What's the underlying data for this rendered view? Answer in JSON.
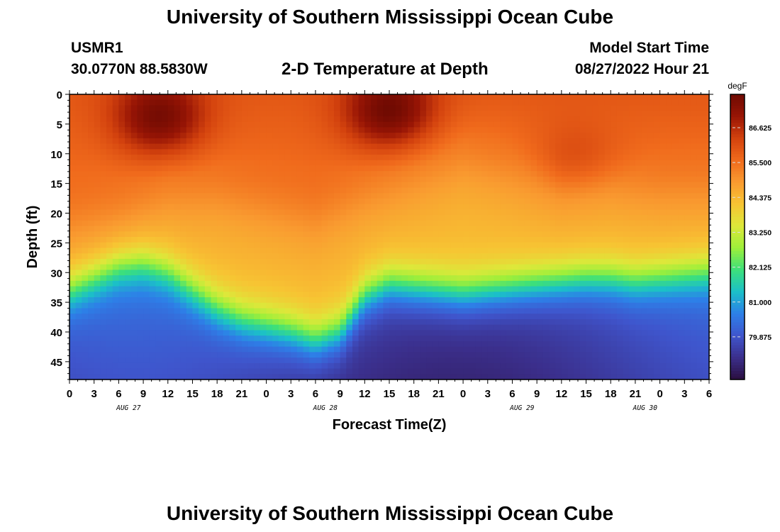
{
  "header": {
    "title": "University of Southern Mississippi Ocean Cube",
    "station_id": "USMR1",
    "coordinates": "30.0770N  88.5830W",
    "subtitle": "2-D Temperature at Depth",
    "model_start_label": "Model Start Time",
    "model_start_value": "08/27/2022 Hour 21"
  },
  "footer": {
    "title": "University of Southern Mississippi Ocean Cube"
  },
  "chart_data": {
    "type": "heatmap",
    "title": "2-D Temperature at Depth",
    "xlabel": "Forecast Time(Z)",
    "ylabel": "Depth (ft)",
    "x_ticks": [
      "0",
      "3",
      "6",
      "9",
      "12",
      "15",
      "18",
      "21",
      "0",
      "3",
      "6",
      "9",
      "12",
      "15",
      "18",
      "21",
      "0",
      "3",
      "6",
      "9",
      "12",
      "15",
      "18",
      "21",
      "0",
      "3",
      "6"
    ],
    "date_labels": [
      {
        "label": "AUG 27",
        "hour": 7.2
      },
      {
        "label": "AUG 28",
        "hour": 31.2
      },
      {
        "label": "AUG 29",
        "hour": 55.2
      },
      {
        "label": "AUG 30",
        "hour": 70.2
      }
    ],
    "x_range_hours": [
      0,
      78
    ],
    "y_ticks": [
      0,
      5,
      10,
      15,
      20,
      25,
      30,
      35,
      40,
      45
    ],
    "ylim": [
      0,
      48
    ],
    "y_inverted": true,
    "colorbar": {
      "unit": "degF",
      "ticks": [
        79.875,
        81.0,
        82.125,
        83.25,
        84.375,
        85.5,
        86.625
      ],
      "tick_labels": [
        "79.875",
        "81.000",
        "82.125",
        "83.250",
        "84.375",
        "85.500",
        "86.625"
      ],
      "range": [
        78.5,
        87.7
      ],
      "colors": [
        "#2b0f40",
        "#3b2f8c",
        "#3f55cc",
        "#2d80e8",
        "#1bc0c8",
        "#3de07a",
        "#9eef3a",
        "#dde83a",
        "#f7c433",
        "#f99a30",
        "#f06a1c",
        "#d3420e",
        "#981505",
        "#6e0a02"
      ]
    },
    "thermocline_depth_ft": [
      {
        "hour": 0,
        "depth": 33
      },
      {
        "hour": 3,
        "depth": 31
      },
      {
        "hour": 6,
        "depth": 29
      },
      {
        "hour": 9,
        "depth": 28.5
      },
      {
        "hour": 12,
        "depth": 30
      },
      {
        "hour": 15,
        "depth": 33
      },
      {
        "hour": 18,
        "depth": 36
      },
      {
        "hour": 21,
        "depth": 38
      },
      {
        "hour": 24,
        "depth": 39
      },
      {
        "hour": 27,
        "depth": 40
      },
      {
        "hour": 30,
        "depth": 41.5
      },
      {
        "hour": 33,
        "depth": 40
      },
      {
        "hour": 36,
        "depth": 34
      },
      {
        "hour": 39,
        "depth": 32
      },
      {
        "hour": 42,
        "depth": 32.5
      },
      {
        "hour": 45,
        "depth": 33
      },
      {
        "hour": 48,
        "depth": 33.5
      },
      {
        "hour": 51,
        "depth": 33
      },
      {
        "hour": 54,
        "depth": 32.5
      },
      {
        "hour": 57,
        "depth": 32
      },
      {
        "hour": 60,
        "depth": 31.5
      },
      {
        "hour": 63,
        "depth": 31
      },
      {
        "hour": 66,
        "depth": 31
      },
      {
        "hour": 69,
        "depth": 31.5
      },
      {
        "hour": 72,
        "depth": 31
      },
      {
        "hour": 75,
        "depth": 30.5
      },
      {
        "hour": 78,
        "depth": 30
      }
    ],
    "warm_layer_depth_ft": [
      {
        "hour": 0,
        "depth": 22
      },
      {
        "hour": 6,
        "depth": 20
      },
      {
        "hour": 12,
        "depth": 17
      },
      {
        "hour": 18,
        "depth": 17
      },
      {
        "hour": 24,
        "depth": 19
      },
      {
        "hour": 30,
        "depth": 21
      },
      {
        "hour": 36,
        "depth": 17
      },
      {
        "hour": 42,
        "depth": 14
      },
      {
        "hour": 48,
        "depth": 11
      },
      {
        "hour": 54,
        "depth": 13
      },
      {
        "hour": 60,
        "depth": 16
      },
      {
        "hour": 66,
        "depth": 15
      },
      {
        "hour": 72,
        "depth": 16
      },
      {
        "hour": 78,
        "depth": 16
      }
    ],
    "surface_hot_spots": [
      {
        "hour": 11,
        "depth": 4,
        "value": 87.4
      },
      {
        "hour": 39,
        "depth": 3,
        "value": 87.5
      },
      {
        "hour": 62,
        "depth": 12,
        "value": 86.3
      }
    ],
    "bottom_temperature_range_degF": [
      79.0,
      80.5
    ],
    "surface_temperature_range_degF": [
      85.6,
      87.5
    ]
  }
}
